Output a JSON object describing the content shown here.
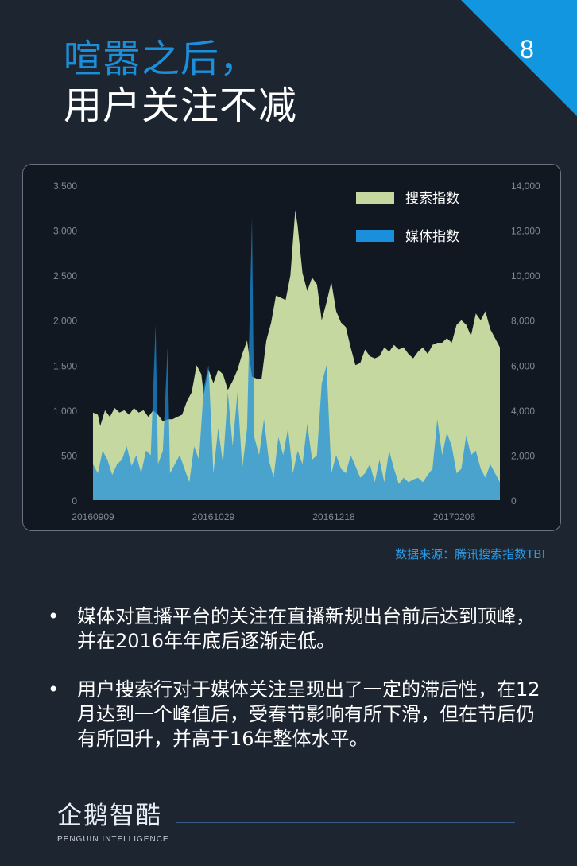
{
  "page_number": "8",
  "title": {
    "line1": "喧嚣之后，",
    "line2": "用户关注不减"
  },
  "source_note": "数据来源：腾讯搜索指数TBI",
  "bullets": [
    "媒体对直播平台的关注在直播新规出台前后达到顶峰，并在2016年年底后逐渐走低。",
    "用户搜索行对于媒体关注呈现出了一定的滞后性，在12月达到一个峰值后，受春节影响有所下滑，但在节后仍有所回升，并高于16年整体水平。"
  ],
  "bullet_symbol": "•",
  "logo": {
    "name": "企鹅智酷",
    "tagline": "PENGUIN INTELLIGENCE"
  },
  "colors": {
    "accent_blue": "#1a8fdc",
    "background": "#1d2531",
    "search_fill": "#c5d8a0",
    "media_fill": "#1a8fdc"
  },
  "chart_data": {
    "type": "area",
    "title": "",
    "xlabel": "",
    "ylabel": "",
    "y_left": {
      "range": [
        0,
        3500
      ],
      "ticks": [
        "0",
        "500",
        "1,000",
        "1,500",
        "2,000",
        "2,500",
        "3,000",
        "3,500"
      ]
    },
    "y_right": {
      "range": [
        0,
        14000
      ],
      "ticks": [
        "0",
        "2,000",
        "4,000",
        "6,000",
        "8,000",
        "10,000",
        "12,000",
        "14,000"
      ]
    },
    "x_tick_labels": [
      "20160909",
      "20161029",
      "20161218",
      "20170206"
    ],
    "x_range_days": "2016-09-09 to 2017-02-26",
    "legend": {
      "placement": "top-right",
      "entries": [
        "搜索指数",
        "媒体指数"
      ]
    },
    "grid": false,
    "series": [
      {
        "name": "搜索指数",
        "axis": "right",
        "points": [
          [
            "2016-09-09",
            3900
          ],
          [
            "2016-09-11",
            3800
          ],
          [
            "2016-09-12",
            3300
          ],
          [
            "2016-09-14",
            4000
          ],
          [
            "2016-09-16",
            3700
          ],
          [
            "2016-09-18",
            4100
          ],
          [
            "2016-09-20",
            3900
          ],
          [
            "2016-09-22",
            4000
          ],
          [
            "2016-09-24",
            3800
          ],
          [
            "2016-09-26",
            4100
          ],
          [
            "2016-09-28",
            3900
          ],
          [
            "2016-09-30",
            4000
          ],
          [
            "2016-10-02",
            3700
          ],
          [
            "2016-10-04",
            4000
          ],
          [
            "2016-10-06",
            3800
          ],
          [
            "2016-10-08",
            3500
          ],
          [
            "2016-10-10",
            3600
          ],
          [
            "2016-10-12",
            3600
          ],
          [
            "2016-10-14",
            3700
          ],
          [
            "2016-10-16",
            3800
          ],
          [
            "2016-10-18",
            4400
          ],
          [
            "2016-10-20",
            4800
          ],
          [
            "2016-10-22",
            6000
          ],
          [
            "2016-10-24",
            5600
          ],
          [
            "2016-10-25",
            4700
          ],
          [
            "2016-10-27",
            5800
          ],
          [
            "2016-10-29",
            5200
          ],
          [
            "2016-10-31",
            5800
          ],
          [
            "2016-11-02",
            5600
          ],
          [
            "2016-11-04",
            4900
          ],
          [
            "2016-11-06",
            5300
          ],
          [
            "2016-11-08",
            5800
          ],
          [
            "2016-11-10",
            6500
          ],
          [
            "2016-11-12",
            7100
          ],
          [
            "2016-11-14",
            5500
          ],
          [
            "2016-11-16",
            5400
          ],
          [
            "2016-11-18",
            5400
          ],
          [
            "2016-11-20",
            7100
          ],
          [
            "2016-11-22",
            7900
          ],
          [
            "2016-11-24",
            9100
          ],
          [
            "2016-11-26",
            9000
          ],
          [
            "2016-11-28",
            8900
          ],
          [
            "2016-11-30",
            10000
          ],
          [
            "2016-12-02",
            12900
          ],
          [
            "2016-12-03",
            12200
          ],
          [
            "2016-12-05",
            10100
          ],
          [
            "2016-12-07",
            9300
          ],
          [
            "2016-12-09",
            9900
          ],
          [
            "2016-12-11",
            9600
          ],
          [
            "2016-12-13",
            8000
          ],
          [
            "2016-12-15",
            8800
          ],
          [
            "2016-12-17",
            9700
          ],
          [
            "2016-12-19",
            8400
          ],
          [
            "2016-12-21",
            7900
          ],
          [
            "2016-12-23",
            7700
          ],
          [
            "2016-12-25",
            6800
          ],
          [
            "2016-12-27",
            6000
          ],
          [
            "2016-12-29",
            6100
          ],
          [
            "2016-12-31",
            6700
          ],
          [
            "2017-01-02",
            6400
          ],
          [
            "2017-01-04",
            6300
          ],
          [
            "2017-01-06",
            6400
          ],
          [
            "2017-01-08",
            6800
          ],
          [
            "2017-01-10",
            6600
          ],
          [
            "2017-01-12",
            6900
          ],
          [
            "2017-01-14",
            6700
          ],
          [
            "2017-01-16",
            6800
          ],
          [
            "2017-01-18",
            6500
          ],
          [
            "2017-01-20",
            6300
          ],
          [
            "2017-01-22",
            6600
          ],
          [
            "2017-01-24",
            6800
          ],
          [
            "2017-01-26",
            6500
          ],
          [
            "2017-01-28",
            6900
          ],
          [
            "2017-01-30",
            7000
          ],
          [
            "2017-02-01",
            7000
          ],
          [
            "2017-02-03",
            7200
          ],
          [
            "2017-02-05",
            7000
          ],
          [
            "2017-02-07",
            7800
          ],
          [
            "2017-02-09",
            8000
          ],
          [
            "2017-02-11",
            7800
          ],
          [
            "2017-02-13",
            7300
          ],
          [
            "2017-02-15",
            8300
          ],
          [
            "2017-02-17",
            8000
          ],
          [
            "2017-02-19",
            8400
          ],
          [
            "2017-02-21",
            7600
          ],
          [
            "2017-02-23",
            7200
          ],
          [
            "2017-02-25",
            6800
          ]
        ]
      },
      {
        "name": "媒体指数",
        "axis": "left",
        "points": [
          [
            "2016-09-09",
            400
          ],
          [
            "2016-09-11",
            300
          ],
          [
            "2016-09-13",
            550
          ],
          [
            "2016-09-15",
            450
          ],
          [
            "2016-09-17",
            280
          ],
          [
            "2016-09-19",
            400
          ],
          [
            "2016-09-21",
            450
          ],
          [
            "2016-09-23",
            600
          ],
          [
            "2016-09-25",
            380
          ],
          [
            "2016-09-27",
            500
          ],
          [
            "2016-09-29",
            300
          ],
          [
            "2016-10-01",
            550
          ],
          [
            "2016-10-03",
            500
          ],
          [
            "2016-10-05",
            1950
          ],
          [
            "2016-10-06",
            400
          ],
          [
            "2016-10-08",
            550
          ],
          [
            "2016-10-10",
            1700
          ],
          [
            "2016-10-11",
            300
          ],
          [
            "2016-10-13",
            400
          ],
          [
            "2016-10-15",
            500
          ],
          [
            "2016-10-17",
            350
          ],
          [
            "2016-10-19",
            200
          ],
          [
            "2016-10-21",
            600
          ],
          [
            "2016-10-23",
            450
          ],
          [
            "2016-10-25",
            1250
          ],
          [
            "2016-10-27",
            1500
          ],
          [
            "2016-10-29",
            300
          ],
          [
            "2016-10-31",
            800
          ],
          [
            "2016-11-02",
            400
          ],
          [
            "2016-11-04",
            1200
          ],
          [
            "2016-11-06",
            600
          ],
          [
            "2016-11-08",
            1200
          ],
          [
            "2016-11-10",
            350
          ],
          [
            "2016-11-12",
            800
          ],
          [
            "2016-11-14",
            3150
          ],
          [
            "2016-11-15",
            700
          ],
          [
            "2016-11-17",
            500
          ],
          [
            "2016-11-19",
            900
          ],
          [
            "2016-11-21",
            450
          ],
          [
            "2016-11-23",
            250
          ],
          [
            "2016-11-25",
            700
          ],
          [
            "2016-11-27",
            500
          ],
          [
            "2016-11-29",
            800
          ],
          [
            "2016-12-01",
            300
          ],
          [
            "2016-12-03",
            550
          ],
          [
            "2016-12-05",
            400
          ],
          [
            "2016-12-07",
            850
          ],
          [
            "2016-12-09",
            450
          ],
          [
            "2016-12-11",
            500
          ],
          [
            "2016-12-13",
            1300
          ],
          [
            "2016-12-15",
            1500
          ],
          [
            "2016-12-17",
            300
          ],
          [
            "2016-12-19",
            500
          ],
          [
            "2016-12-21",
            350
          ],
          [
            "2016-12-23",
            300
          ],
          [
            "2016-12-25",
            500
          ],
          [
            "2016-12-27",
            380
          ],
          [
            "2016-12-29",
            250
          ],
          [
            "2016-12-31",
            300
          ],
          [
            "2017-01-02",
            400
          ],
          [
            "2017-01-04",
            200
          ],
          [
            "2017-01-06",
            450
          ],
          [
            "2017-01-08",
            200
          ],
          [
            "2017-01-10",
            550
          ],
          [
            "2017-01-12",
            350
          ],
          [
            "2017-01-14",
            180
          ],
          [
            "2017-01-16",
            250
          ],
          [
            "2017-01-18",
            200
          ],
          [
            "2017-01-20",
            230
          ],
          [
            "2017-01-22",
            250
          ],
          [
            "2017-01-24",
            200
          ],
          [
            "2017-01-26",
            280
          ],
          [
            "2017-01-28",
            350
          ],
          [
            "2017-01-30",
            900
          ],
          [
            "2017-02-01",
            500
          ],
          [
            "2017-02-03",
            750
          ],
          [
            "2017-02-05",
            600
          ],
          [
            "2017-02-07",
            300
          ],
          [
            "2017-02-09",
            350
          ],
          [
            "2017-02-11",
            720
          ],
          [
            "2017-02-13",
            500
          ],
          [
            "2017-02-15",
            550
          ],
          [
            "2017-02-17",
            350
          ],
          [
            "2017-02-19",
            250
          ],
          [
            "2017-02-21",
            400
          ],
          [
            "2017-02-23",
            300
          ],
          [
            "2017-02-25",
            200
          ]
        ]
      }
    ]
  }
}
